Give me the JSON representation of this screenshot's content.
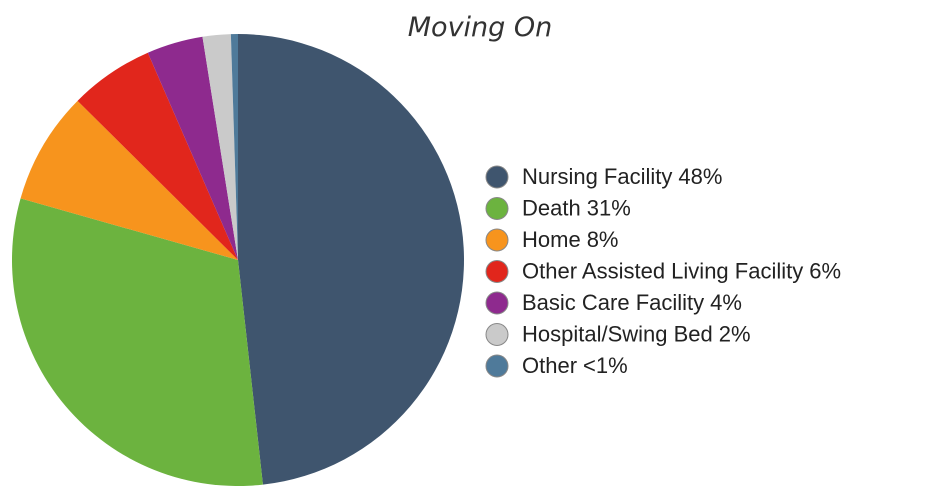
{
  "chart_data": {
    "type": "pie",
    "title": "Moving On",
    "categories": [
      "Nursing Facility",
      "Death",
      "Home",
      "Other Assisted Living Facility",
      "Basic Care Facility",
      "Hospital/Swing Bed",
      "Other"
    ],
    "values": [
      48,
      31,
      8,
      6,
      4,
      2,
      0.5
    ],
    "value_labels": [
      "48%",
      "31%",
      "8%",
      "6%",
      "4%",
      "2%",
      "<1%"
    ],
    "colors": [
      "#3f556e",
      "#6cb33f",
      "#f7941d",
      "#e1261c",
      "#8e2a8e",
      "#cacaca",
      "#4f7a9a"
    ],
    "legend": "right"
  }
}
